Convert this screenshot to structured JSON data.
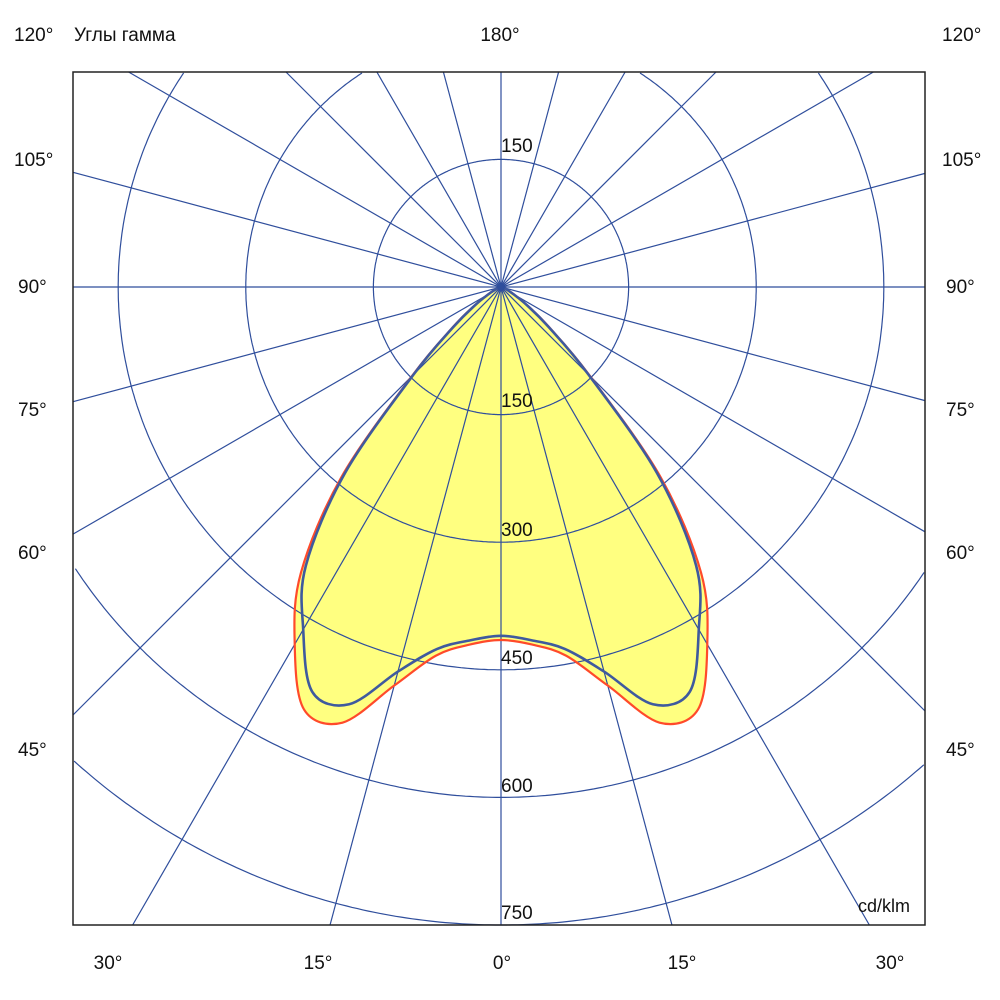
{
  "chart_data": {
    "type": "polar",
    "title": "Углы гамма",
    "unit_label": "cd/klm",
    "radial_ticks": [
      "150",
      "300",
      "450",
      "600",
      "750"
    ],
    "radial_max": 750,
    "grid": true,
    "angle_step_deg": 15,
    "angle_labels": {
      "top": [
        "120°",
        "180°",
        "120°"
      ],
      "left": [
        "105°",
        "90°",
        "75°",
        "60°",
        "45°"
      ],
      "right": [
        "105°",
        "90°",
        "75°",
        "60°",
        "45°"
      ],
      "bottom": [
        "30°",
        "15°",
        "0°",
        "15°",
        "30°"
      ]
    },
    "top_ring_label": "150",
    "gamma_deg": [
      0,
      5,
      10,
      15,
      20,
      25,
      30,
      35,
      40,
      45,
      50,
      55,
      60,
      65,
      70,
      75,
      80,
      85,
      90
    ],
    "series": [
      {
        "color": "#FF4A2A",
        "values": [
          415,
          422,
          440,
          485,
          545,
          548,
          485,
          410,
          292,
          148,
          75,
          38,
          18,
          8,
          4,
          2,
          1,
          0,
          0
        ]
      },
      {
        "color": "#3F5A9E",
        "values": [
          410,
          417,
          432,
          468,
          522,
          525,
          465,
          400,
          285,
          145,
          73,
          37,
          17,
          8,
          4,
          2,
          1,
          0,
          0
        ]
      }
    ],
    "fill_color": "#FFFF80",
    "grid_color": "#2F4E9C"
  }
}
